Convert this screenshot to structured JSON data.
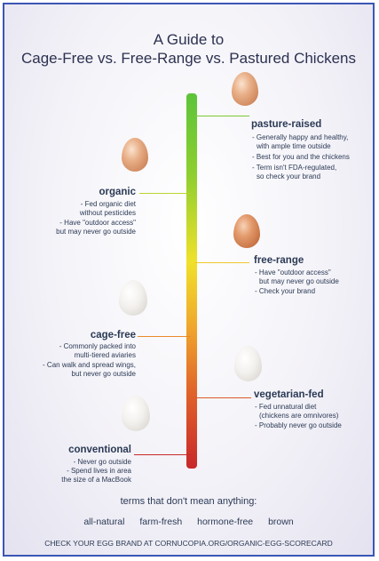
{
  "title": {
    "line1": "A Guide to",
    "line2": "Cage-Free vs. Free-Range vs. Pastured Chickens"
  },
  "scale_colors": {
    "top": "#5cc43a",
    "middle": "#f0e12a",
    "bottom": "#c8282a"
  },
  "categories": [
    {
      "id": "pasture-raised",
      "label": "pasture-raised",
      "egg_color": "brown",
      "points": [
        "- Generally happy and healthy,",
        "  with ample time outside",
        "- Best for you and the chickens",
        "- Term isn't FDA-regulated,",
        "  so check your brand"
      ]
    },
    {
      "id": "organic",
      "label": "organic",
      "egg_color": "brown",
      "points": [
        "- Fed organic diet",
        "without pesticides",
        "- Have \"outdoor access\"",
        "but may never go outside"
      ]
    },
    {
      "id": "free-range",
      "label": "free-range",
      "egg_color": "brown",
      "points": [
        "- Have \"outdoor access\"",
        "but may never go outside",
        "- Check your brand"
      ]
    },
    {
      "id": "cage-free",
      "label": "cage-free",
      "egg_color": "white",
      "points": [
        "- Commonly packed into",
        "multi-tiered aviaries",
        "- Can walk and spread wings,",
        "but never go outside"
      ]
    },
    {
      "id": "vegetarian-fed",
      "label": "vegetarian-fed",
      "egg_color": "white",
      "points": [
        "- Fed unnatural diet",
        "(chickens are omnivores)",
        "- Probably never go outside"
      ]
    },
    {
      "id": "conventional",
      "label": "conventional",
      "egg_color": "white",
      "points": [
        "- Never go outside",
        "- Spend lives in area",
        "the size of a MacBook"
      ]
    }
  ],
  "footer": {
    "meaningless_heading": "terms that don't mean anything:",
    "meaningless_terms": [
      "all-natural",
      "farm-fresh",
      "hormone-free",
      "brown"
    ],
    "check_line": "CHECK YOUR EGG BRAND AT CORNUCOPIA.ORG/ORGANIC-EGG-SCORECARD"
  }
}
